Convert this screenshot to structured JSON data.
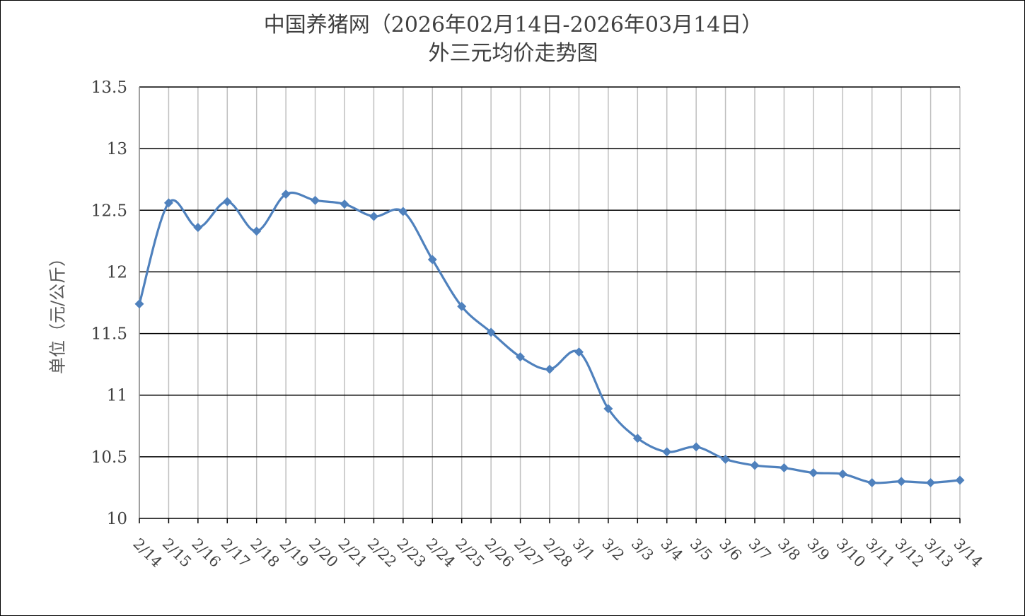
{
  "chart_data": {
    "type": "line",
    "title": "中国养猪网（2026年02月14日-2026年03月14日）",
    "subtitle": "外三元均价走势图",
    "xlabel": "",
    "ylabel": "单位（元/公斤）",
    "ylim": [
      10,
      13.5
    ],
    "ystep": 0.5,
    "yticks": [
      "10",
      "10.5",
      "11",
      "11.5",
      "12",
      "12.5",
      "13",
      "13.5"
    ],
    "grid": true,
    "legend": "none",
    "categories": [
      "2/14",
      "2/15",
      "2/16",
      "2/17",
      "2/18",
      "2/19",
      "2/20",
      "2/21",
      "2/22",
      "2/23",
      "2/24",
      "2/25",
      "2/26",
      "2/27",
      "2/28",
      "3/1",
      "3/2",
      "3/3",
      "3/4",
      "3/5",
      "3/6",
      "3/7",
      "3/8",
      "3/9",
      "3/10",
      "3/11",
      "3/12",
      "3/13",
      "3/14"
    ],
    "series": [
      {
        "color": "#4f81bd",
        "values": [
          11.74,
          12.56,
          12.36,
          12.57,
          12.33,
          12.63,
          12.58,
          12.55,
          12.45,
          12.49,
          12.1,
          11.72,
          11.51,
          11.31,
          11.21,
          11.35,
          10.89,
          10.65,
          10.54,
          10.58,
          10.48,
          10.43,
          10.41,
          10.37,
          10.36,
          10.29,
          10.3,
          10.29,
          10.31
        ]
      }
    ]
  }
}
